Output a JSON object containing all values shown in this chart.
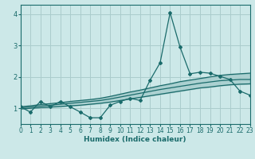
{
  "xlabel": "Humidex (Indice chaleur)",
  "bg_color": "#cce8e8",
  "grid_color": "#aacccc",
  "line_color": "#1a6b6b",
  "x": [
    0,
    1,
    2,
    3,
    4,
    5,
    6,
    7,
    8,
    9,
    10,
    11,
    12,
    13,
    14,
    15,
    16,
    17,
    18,
    19,
    20,
    21,
    22,
    23
  ],
  "y_main": [
    1.05,
    0.88,
    1.22,
    1.05,
    1.22,
    1.05,
    0.88,
    0.7,
    0.7,
    1.1,
    1.22,
    1.32,
    1.25,
    1.9,
    2.45,
    4.05,
    2.95,
    2.1,
    2.15,
    2.12,
    2.02,
    1.92,
    1.55,
    1.42
  ],
  "y_upper": [
    1.05,
    1.08,
    1.12,
    1.15,
    1.18,
    1.22,
    1.25,
    1.28,
    1.32,
    1.38,
    1.45,
    1.52,
    1.58,
    1.65,
    1.72,
    1.78,
    1.85,
    1.9,
    1.95,
    2.0,
    2.05,
    2.08,
    2.1,
    2.12
  ],
  "y_mean": [
    1.02,
    1.04,
    1.07,
    1.1,
    1.13,
    1.16,
    1.19,
    1.22,
    1.25,
    1.3,
    1.36,
    1.42,
    1.48,
    1.54,
    1.6,
    1.65,
    1.7,
    1.75,
    1.8,
    1.84,
    1.88,
    1.9,
    1.92,
    1.92
  ],
  "y_lower": [
    0.98,
    1.0,
    1.02,
    1.04,
    1.06,
    1.08,
    1.1,
    1.13,
    1.16,
    1.2,
    1.25,
    1.3,
    1.35,
    1.4,
    1.45,
    1.5,
    1.55,
    1.6,
    1.65,
    1.68,
    1.72,
    1.75,
    1.77,
    1.78
  ],
  "xlim": [
    0,
    23
  ],
  "ylim": [
    0.5,
    4.3
  ],
  "yticks": [
    1,
    2,
    3,
    4
  ],
  "xticks": [
    0,
    1,
    2,
    3,
    4,
    5,
    6,
    7,
    8,
    9,
    10,
    11,
    12,
    13,
    14,
    15,
    16,
    17,
    18,
    19,
    20,
    21,
    22,
    23
  ]
}
